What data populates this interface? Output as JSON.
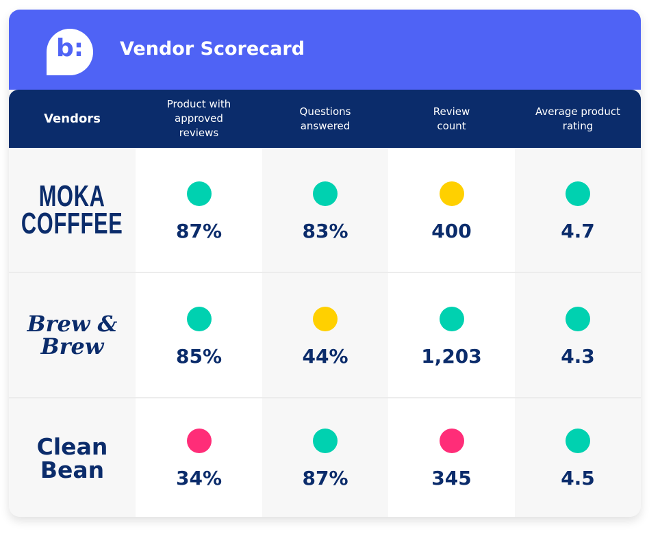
{
  "header": {
    "title": "Vendor Scorecard",
    "logo": "b:"
  },
  "columns": [
    "Vendors",
    "Product with approved reviews",
    "Questions answered",
    "Review count",
    "Average product rating"
  ],
  "status_colors": {
    "good": "#00d1b0",
    "warning": "#ffd000",
    "bad": "#ff2d78"
  },
  "rows": [
    {
      "vendor": [
        "MOKA",
        "COFFFEE"
      ],
      "cells": [
        {
          "value": "87%",
          "status": "good"
        },
        {
          "value": "83%",
          "status": "good"
        },
        {
          "value": "400",
          "status": "warning"
        },
        {
          "value": "4.7",
          "status": "good"
        }
      ]
    },
    {
      "vendor": [
        "Brew &",
        "Brew"
      ],
      "cells": [
        {
          "value": "85%",
          "status": "good"
        },
        {
          "value": "44%",
          "status": "warning"
        },
        {
          "value": "1,203",
          "status": "good"
        },
        {
          "value": "4.3",
          "status": "good"
        }
      ]
    },
    {
      "vendor": [
        "Clean",
        "Bean"
      ],
      "cells": [
        {
          "value": "34%",
          "status": "bad"
        },
        {
          "value": "87%",
          "status": "good"
        },
        {
          "value": "345",
          "status": "bad"
        },
        {
          "value": "4.5",
          "status": "good"
        }
      ]
    }
  ]
}
